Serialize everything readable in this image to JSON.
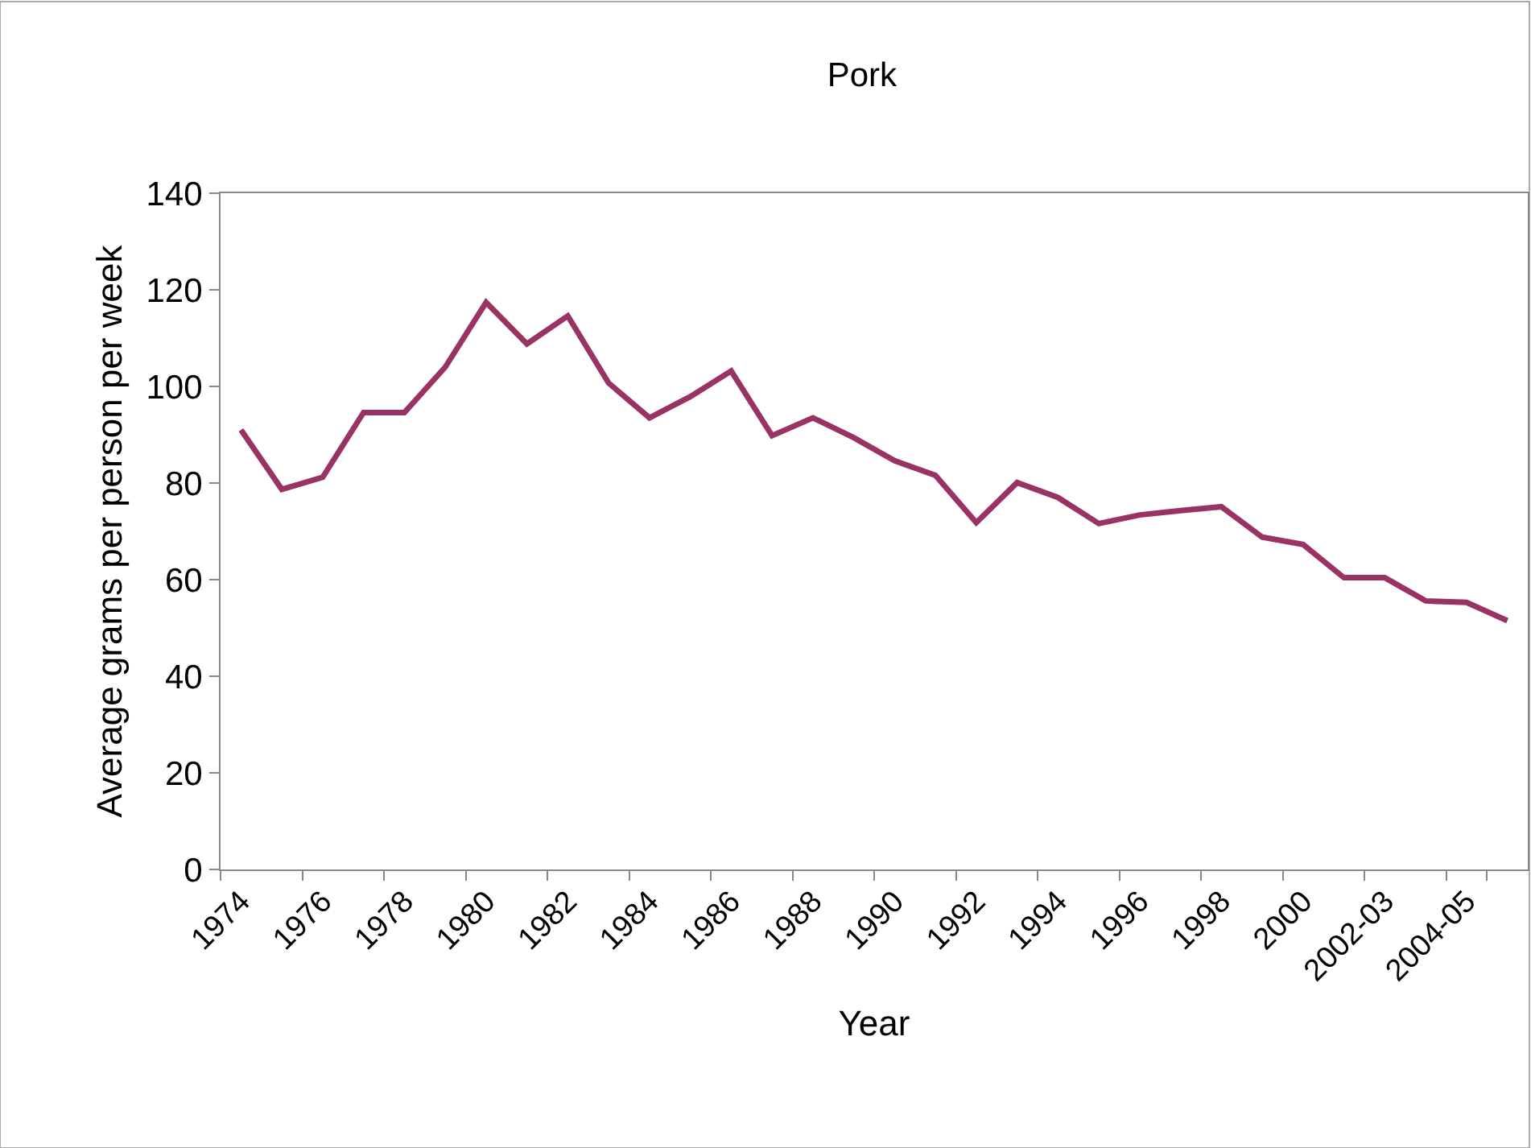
{
  "chart_data": {
    "type": "line",
    "title": "Pork",
    "xlabel": "Year",
    "ylabel": "Average grams per person per week",
    "categories": [
      "1974",
      null,
      "1976",
      null,
      "1978",
      null,
      "1980",
      null,
      "1982",
      null,
      "1984",
      null,
      "1986",
      null,
      "1988",
      null,
      "1990",
      null,
      "1992",
      null,
      "1994",
      null,
      "1996",
      null,
      "1998",
      null,
      "2000",
      null,
      "2002-03",
      null,
      "2004-05",
      null
    ],
    "series": [
      {
        "color": "#993366",
        "values": [
          91.0,
          78.7,
          81.2,
          94.6,
          94.6,
          104.0,
          117.4,
          108.8,
          114.6,
          100.7,
          93.5,
          97.9,
          103.2,
          89.8,
          93.5,
          89.4,
          84.6,
          81.6,
          71.8,
          80.1,
          77.0,
          71.6,
          73.4,
          74.3,
          75.1,
          68.8,
          67.3,
          60.4,
          60.4,
          55.6,
          55.3,
          51.5
        ]
      }
    ],
    "ylim": [
      0,
      140
    ],
    "yticks": [
      0,
      20,
      40,
      60,
      80,
      100,
      120,
      140
    ],
    "legend": false,
    "marker": "none",
    "line_style": "solid"
  }
}
